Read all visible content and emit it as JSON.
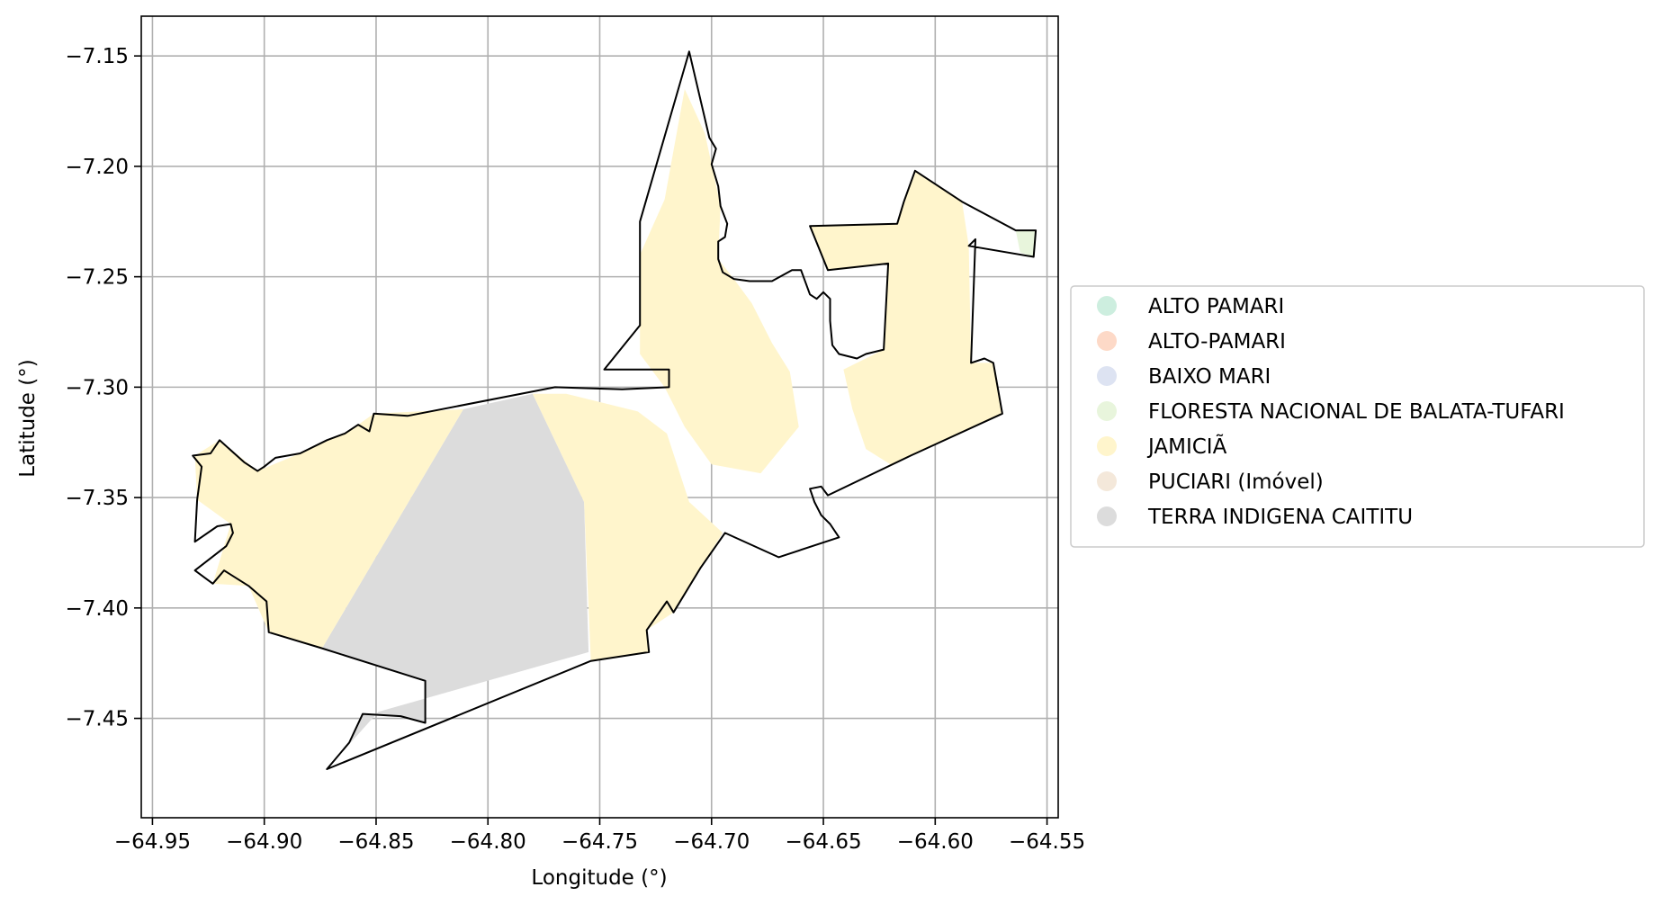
{
  "chart_data": {
    "type": "map",
    "title": "",
    "xlabel": "Longitude (°)",
    "ylabel": "Latitude (°)",
    "xlim": [
      -64.955,
      -64.545
    ],
    "ylim": [
      -7.495,
      -7.132
    ],
    "grid": true,
    "x_ticks": [
      -64.95,
      -64.9,
      -64.85,
      -64.8,
      -64.75,
      -64.7,
      -64.65,
      -64.6,
      -64.55
    ],
    "x_tick_labels": [
      "−64.95",
      "−64.90",
      "−64.85",
      "−64.80",
      "−64.75",
      "−64.70",
      "−64.65",
      "−64.60",
      "−64.55"
    ],
    "y_ticks": [
      -7.15,
      -7.2,
      -7.25,
      -7.3,
      -7.35,
      -7.4,
      -7.45
    ],
    "y_tick_labels": [
      "−7.15",
      "−7.20",
      "−7.25",
      "−7.30",
      "−7.35",
      "−7.40",
      "−7.45"
    ],
    "legend_position": "right",
    "legend": [
      {
        "label": "ALTO PAMARI",
        "color": "#cdeedf"
      },
      {
        "label": "ALTO-PAMARI",
        "color": "#fdd9c7"
      },
      {
        "label": "BAIXO MARI",
        "color": "#dde3f2"
      },
      {
        "label": "FLORESTA NACIONAL DE BALATA-TUFARI",
        "color": "#e8f5dc"
      },
      {
        "label": "JAMICIÃ",
        "color": "#fff5cc"
      },
      {
        "label": "PUCIARI (Imóvel)",
        "color": "#f4e8da"
      },
      {
        "label": "TERRA INDIGENA CAITITU",
        "color": "#dcdcdc"
      }
    ],
    "boundary": [
      [
        -64.872,
        -7.473
      ],
      [
        -64.862,
        -7.461
      ],
      [
        -64.856,
        -7.448
      ],
      [
        -64.839,
        -7.449
      ],
      [
        -64.828,
        -7.452
      ],
      [
        -64.828,
        -7.433
      ],
      [
        -64.875,
        -7.418
      ],
      [
        -64.898,
        -7.411
      ],
      [
        -64.899,
        -7.397
      ],
      [
        -64.907,
        -7.39
      ],
      [
        -64.918,
        -7.383
      ],
      [
        -64.923,
        -7.389
      ],
      [
        -64.931,
        -7.383
      ],
      [
        -64.917,
        -7.372
      ],
      [
        -64.914,
        -7.366
      ],
      [
        -64.915,
        -7.362
      ],
      [
        -64.921,
        -7.363
      ],
      [
        -64.931,
        -7.37
      ],
      [
        -64.93,
        -7.351
      ],
      [
        -64.928,
        -7.336
      ],
      [
        -64.932,
        -7.331
      ],
      [
        -64.924,
        -7.33
      ],
      [
        -64.92,
        -7.324
      ],
      [
        -64.909,
        -7.334
      ],
      [
        -64.903,
        -7.338
      ],
      [
        -64.9,
        -7.336
      ],
      [
        -64.895,
        -7.332
      ],
      [
        -64.884,
        -7.33
      ],
      [
        -64.872,
        -7.324
      ],
      [
        -64.864,
        -7.321
      ],
      [
        -64.858,
        -7.317
      ],
      [
        -64.853,
        -7.32
      ],
      [
        -64.851,
        -7.312
      ],
      [
        -64.836,
        -7.313
      ],
      [
        -64.77,
        -7.3
      ],
      [
        -64.74,
        -7.301
      ],
      [
        -64.719,
        -7.3
      ],
      [
        -64.719,
        -7.292
      ],
      [
        -64.748,
        -7.292
      ],
      [
        -64.732,
        -7.272
      ],
      [
        -64.732,
        -7.225
      ],
      [
        -64.71,
        -7.148
      ],
      [
        -64.701,
        -7.187
      ],
      [
        -64.698,
        -7.192
      ],
      [
        -64.7,
        -7.199
      ],
      [
        -64.697,
        -7.209
      ],
      [
        -64.696,
        -7.218
      ],
      [
        -64.693,
        -7.226
      ],
      [
        -64.694,
        -7.232
      ],
      [
        -64.697,
        -7.234
      ],
      [
        -64.697,
        -7.242
      ],
      [
        -64.695,
        -7.248
      ],
      [
        -64.69,
        -7.251
      ],
      [
        -64.683,
        -7.252
      ],
      [
        -64.673,
        -7.252
      ],
      [
        -64.664,
        -7.247
      ],
      [
        -64.66,
        -7.247
      ],
      [
        -64.656,
        -7.258
      ],
      [
        -64.653,
        -7.26
      ],
      [
        -64.65,
        -7.257
      ],
      [
        -64.647,
        -7.26
      ],
      [
        -64.647,
        -7.27
      ],
      [
        -64.646,
        -7.281
      ],
      [
        -64.643,
        -7.285
      ],
      [
        -64.635,
        -7.287
      ],
      [
        -64.631,
        -7.285
      ],
      [
        -64.623,
        -7.283
      ],
      [
        -64.621,
        -7.244
      ],
      [
        -64.648,
        -7.247
      ],
      [
        -64.656,
        -7.227
      ],
      [
        -64.617,
        -7.226
      ],
      [
        -64.614,
        -7.216
      ],
      [
        -64.609,
        -7.202
      ],
      [
        -64.588,
        -7.216
      ],
      [
        -64.564,
        -7.229
      ],
      [
        -64.555,
        -7.229
      ],
      [
        -64.556,
        -7.241
      ],
      [
        -64.585,
        -7.236
      ],
      [
        -64.582,
        -7.233
      ],
      [
        -64.584,
        -7.289
      ],
      [
        -64.578,
        -7.287
      ],
      [
        -64.574,
        -7.289
      ],
      [
        -64.57,
        -7.312
      ],
      [
        -64.611,
        -7.331
      ],
      [
        -64.648,
        -7.349
      ],
      [
        -64.651,
        -7.345
      ],
      [
        -64.656,
        -7.346
      ],
      [
        -64.654,
        -7.352
      ],
      [
        -64.651,
        -7.358
      ],
      [
        -64.647,
        -7.362
      ],
      [
        -64.643,
        -7.368
      ],
      [
        -64.67,
        -7.377
      ],
      [
        -64.694,
        -7.366
      ],
      [
        -64.705,
        -7.382
      ],
      [
        -64.717,
        -7.402
      ],
      [
        -64.72,
        -7.397
      ],
      [
        -64.729,
        -7.41
      ],
      [
        -64.728,
        -7.42
      ],
      [
        -64.754,
        -7.424
      ],
      [
        -64.872,
        -7.473
      ]
    ],
    "regions": [
      {
        "name": "TERRA INDIGENA CAITITU",
        "color": "#dcdcdc",
        "polygon": [
          [
            -64.811,
            -7.31
          ],
          [
            -64.78,
            -7.303
          ],
          [
            -64.764,
            -7.337
          ],
          [
            -64.757,
            -7.352
          ],
          [
            -64.755,
            -7.42
          ],
          [
            -64.849,
            -7.447
          ],
          [
            -64.872,
            -7.473
          ],
          [
            -64.862,
            -7.461
          ],
          [
            -64.856,
            -7.448
          ],
          [
            -64.839,
            -7.449
          ],
          [
            -64.828,
            -7.452
          ],
          [
            -64.828,
            -7.433
          ],
          [
            -64.874,
            -7.418
          ]
        ]
      },
      {
        "name": "JAMICIÃ",
        "color": "#fff5cc",
        "polygon": [
          [
            -64.931,
            -7.331
          ],
          [
            -64.92,
            -7.324
          ],
          [
            -64.903,
            -7.338
          ],
          [
            -64.884,
            -7.33
          ],
          [
            -64.872,
            -7.324
          ],
          [
            -64.864,
            -7.321
          ],
          [
            -64.858,
            -7.317
          ],
          [
            -64.851,
            -7.312
          ],
          [
            -64.811,
            -7.31
          ],
          [
            -64.874,
            -7.418
          ],
          [
            -64.898,
            -7.411
          ],
          [
            -64.907,
            -7.39
          ],
          [
            -64.923,
            -7.389
          ],
          [
            -64.915,
            -7.362
          ],
          [
            -64.93,
            -7.351
          ]
        ]
      },
      {
        "name": "JAMICIÃ",
        "color": "#fff5cc",
        "polygon": [
          [
            -64.78,
            -7.303
          ],
          [
            -64.765,
            -7.303
          ],
          [
            -64.733,
            -7.311
          ],
          [
            -64.72,
            -7.321
          ],
          [
            -64.71,
            -7.352
          ],
          [
            -64.695,
            -7.366
          ],
          [
            -64.705,
            -7.382
          ],
          [
            -64.717,
            -7.402
          ],
          [
            -64.729,
            -7.41
          ],
          [
            -64.728,
            -7.42
          ],
          [
            -64.754,
            -7.424
          ],
          [
            -64.757,
            -7.352
          ],
          [
            -64.764,
            -7.337
          ]
        ]
      },
      {
        "name": "JAMICIÃ",
        "color": "#fff5cc",
        "polygon": [
          [
            -64.712,
            -7.165
          ],
          [
            -64.703,
            -7.185
          ],
          [
            -64.7,
            -7.199
          ],
          [
            -64.696,
            -7.218
          ],
          [
            -64.697,
            -7.242
          ],
          [
            -64.69,
            -7.251
          ],
          [
            -64.682,
            -7.262
          ],
          [
            -64.673,
            -7.28
          ],
          [
            -64.665,
            -7.293
          ],
          [
            -64.661,
            -7.318
          ],
          [
            -64.678,
            -7.339
          ],
          [
            -64.7,
            -7.335
          ],
          [
            -64.712,
            -7.318
          ],
          [
            -64.721,
            -7.3
          ],
          [
            -64.732,
            -7.285
          ],
          [
            -64.732,
            -7.24
          ],
          [
            -64.721,
            -7.215
          ]
        ]
      },
      {
        "name": "JAMICIÃ",
        "color": "#fff5cc",
        "polygon": [
          [
            -64.656,
            -7.227
          ],
          [
            -64.617,
            -7.226
          ],
          [
            -64.609,
            -7.202
          ],
          [
            -64.588,
            -7.216
          ],
          [
            -64.585,
            -7.236
          ],
          [
            -64.584,
            -7.289
          ],
          [
            -64.574,
            -7.289
          ],
          [
            -64.57,
            -7.312
          ],
          [
            -64.611,
            -7.331
          ],
          [
            -64.62,
            -7.335
          ],
          [
            -64.631,
            -7.328
          ],
          [
            -64.637,
            -7.31
          ],
          [
            -64.641,
            -7.292
          ],
          [
            -64.623,
            -7.283
          ],
          [
            -64.621,
            -7.244
          ],
          [
            -64.648,
            -7.247
          ]
        ]
      },
      {
        "name": "FLORESTA NACIONAL DE BALATA-TUFARI",
        "color": "#e8f5dc",
        "polygon": [
          [
            -64.564,
            -7.229
          ],
          [
            -64.555,
            -7.229
          ],
          [
            -64.556,
            -7.241
          ],
          [
            -64.562,
            -7.239
          ]
        ]
      }
    ]
  }
}
